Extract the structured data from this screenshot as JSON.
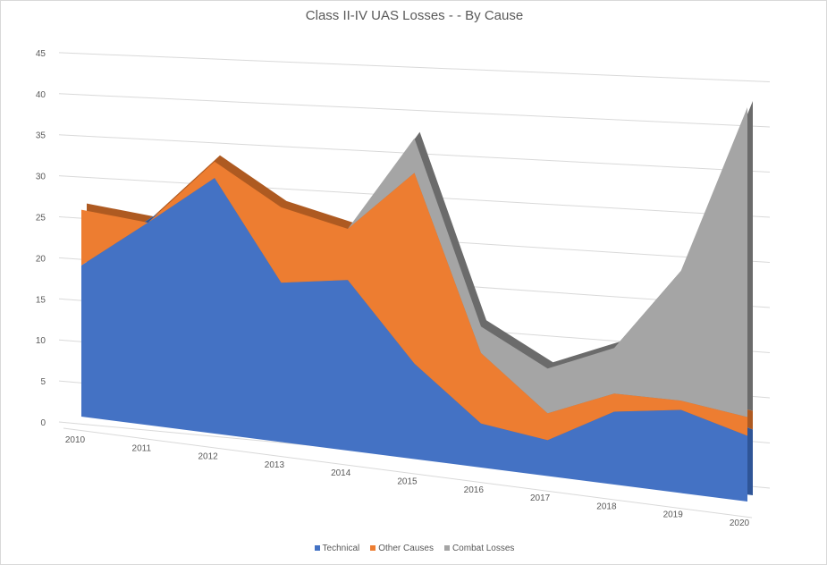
{
  "chart_data": {
    "type": "area",
    "subtype": "3d-stacked-area",
    "title": "Class II-IV UAS Losses - - By Cause",
    "categories": [
      "2010",
      "2011",
      "2012",
      "2013",
      "2014",
      "2015",
      "2016",
      "2017",
      "2018",
      "2019",
      "2020"
    ],
    "yticks": [
      "0",
      "5",
      "10",
      "15",
      "20",
      "25",
      "30",
      "35",
      "40",
      "45"
    ],
    "ylim": [
      0,
      45
    ],
    "grid": true,
    "legend": "bottom",
    "series": [
      {
        "name": "Technical",
        "color": "#4472c4",
        "values": [
          19,
          25,
          31,
          19,
          20,
          11,
          5,
          4,
          8,
          9,
          7
        ]
      },
      {
        "name": "Other Causes",
        "color": "#ed7d31",
        "values": [
          7,
          0,
          2,
          9,
          6,
          22,
          8,
          3,
          2,
          1,
          2
        ]
      },
      {
        "name": "Combat Losses",
        "color": "#a5a5a5",
        "values": [
          0,
          0,
          0,
          0,
          0,
          4,
          3,
          5,
          5,
          14,
          33
        ]
      }
    ]
  }
}
